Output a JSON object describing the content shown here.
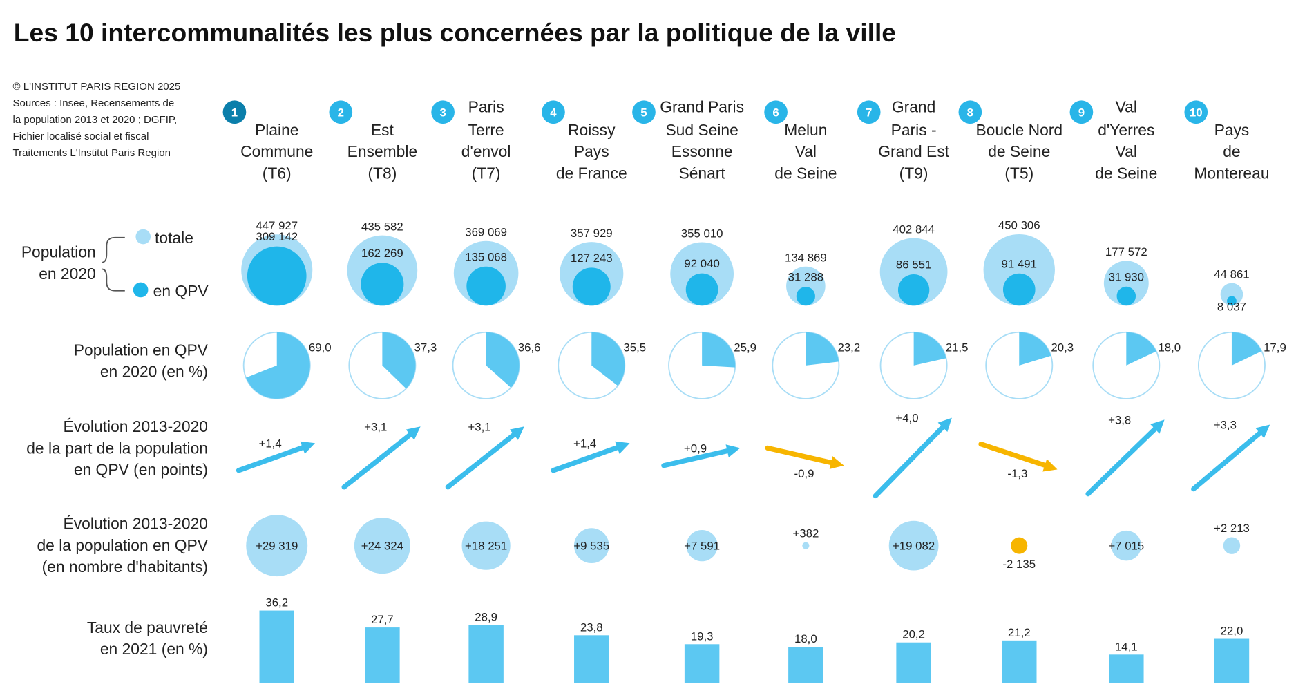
{
  "title": "Les 10 intercommunalités les plus concernées par la politique de la ville",
  "credits": [
    "© L'INSTITUT PARIS REGION 2025",
    "Sources : Insee, Recensements de",
    "la population 2013 et 2020 ; DGFIP,",
    "Fichier localisé social et fiscal",
    "Traitements L'Institut Paris Region"
  ],
  "colors": {
    "total": "#a8ddf6",
    "qpv": "#1fb6ea",
    "light": "#5cc8f2",
    "increase": "#3bbdec",
    "decrease": "#f7b500",
    "rank1": "#0b7fab",
    "rank": "#29b5e8"
  },
  "row_labels": {
    "population": [
      "Population",
      "en 2020"
    ],
    "legend_total": "totale",
    "legend_qpv": "en QPV",
    "share": [
      "Population en QPV",
      "en 2020 (en %)"
    ],
    "share_change": [
      "Évolution 2013-2020",
      "de la part de la population",
      "en QPV (en points)"
    ],
    "pop_change": [
      "Évolution 2013-2020",
      "de la population en QPV",
      "(en nombre d'habitants)"
    ],
    "poverty": [
      "Taux de pauvreté",
      "en 2021 (en %)"
    ]
  },
  "chart_data": {
    "type": "table",
    "title": "Les 10 intercommunalités les plus concernées par la politique de la ville",
    "columns": [
      {
        "rank": "1",
        "name": [
          "Plaine",
          "Commune",
          "(T6)"
        ],
        "pop_total": "447 927",
        "pop_qpv": "309 142",
        "share_qpv": "69,0",
        "share_change": "+1,4",
        "pop_change": "+29 319",
        "poverty": "36,2"
      },
      {
        "rank": "2",
        "name": [
          "Est",
          "Ensemble",
          "(T8)"
        ],
        "pop_total": "435 582",
        "pop_qpv": "162 269",
        "share_qpv": "37,3",
        "share_change": "+3,1",
        "pop_change": "+24 324",
        "poverty": "27,7"
      },
      {
        "rank": "3",
        "name": [
          "Paris",
          "Terre",
          "d'envol",
          "(T7)"
        ],
        "pop_total": "369 069",
        "pop_qpv": "135 068",
        "share_qpv": "36,6",
        "share_change": "+3,1",
        "pop_change": "+18 251",
        "poverty": "28,9"
      },
      {
        "rank": "4",
        "name": [
          "Roissy",
          "Pays",
          "de France"
        ],
        "pop_total": "357 929",
        "pop_qpv": "127 243",
        "share_qpv": "35,5",
        "share_change": "+1,4",
        "pop_change": "+9 535",
        "poverty": "23,8"
      },
      {
        "rank": "5",
        "name": [
          "Grand Paris",
          "Sud Seine",
          "Essonne",
          "Sénart"
        ],
        "pop_total": "355 010",
        "pop_qpv": "92 040",
        "share_qpv": "25,9",
        "share_change": "+0,9",
        "pop_change": "+7 591",
        "poverty": "19,3"
      },
      {
        "rank": "6",
        "name": [
          "Melun",
          "Val",
          "de Seine"
        ],
        "pop_total": "134 869",
        "pop_qpv": "31 288",
        "share_qpv": "23,2",
        "share_change": "-0,9",
        "pop_change": "+382",
        "poverty": "18,0"
      },
      {
        "rank": "7",
        "name": [
          "Grand",
          "Paris -",
          "Grand Est",
          "(T9)"
        ],
        "pop_total": "402 844",
        "pop_qpv": "86 551",
        "share_qpv": "21,5",
        "share_change": "+4,0",
        "pop_change": "+19 082",
        "poverty": "20,2"
      },
      {
        "rank": "8",
        "name": [
          "Boucle Nord",
          "de Seine",
          "(T5)"
        ],
        "pop_total": "450 306",
        "pop_qpv": "91 491",
        "share_qpv": "20,3",
        "share_change": "-1,3",
        "pop_change": "-2 135",
        "poverty": "21,2"
      },
      {
        "rank": "9",
        "name": [
          "Val",
          "d'Yerres",
          "Val",
          "de Seine"
        ],
        "pop_total": "177 572",
        "pop_qpv": "31 930",
        "share_qpv": "18,0",
        "share_change": "+3,8",
        "pop_change": "+7 015",
        "poverty": "14,1"
      },
      {
        "rank": "10",
        "name": [
          "Pays",
          "de",
          "Montereau"
        ],
        "pop_total": "44 861",
        "pop_qpv": "8 037",
        "share_qpv": "17,9",
        "share_change": "+3,3",
        "pop_change": "+2 213",
        "poverty": "22,0"
      }
    ]
  }
}
